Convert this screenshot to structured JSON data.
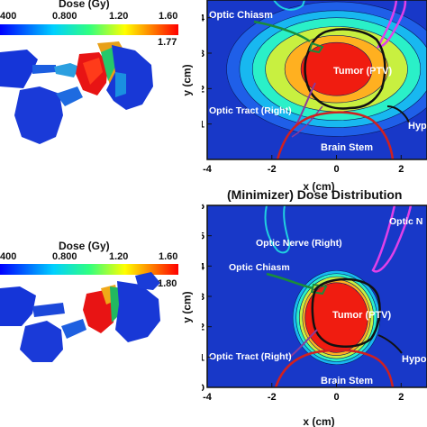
{
  "top_left": {
    "colorbar_title": "Dose (Gy)",
    "colorbar_ticks": [
      "400",
      "0.800",
      "1.20",
      "1.60"
    ],
    "colorbar_max": "1.77"
  },
  "bottom_left": {
    "colorbar_title": "Dose (Gy)",
    "colorbar_ticks": [
      "400",
      "0.800",
      "1.20",
      "1.60"
    ],
    "colorbar_max": "1.80"
  },
  "top_right": {
    "title": "",
    "xlabel": "x (cm)",
    "ylabel": "y (cm)",
    "labels": {
      "optic_chiasm": "Optic Chiasm",
      "tumor": "Tumor (PTV)",
      "optic_tract": "Optic Tract (Right)",
      "hypo": "Hypo",
      "brain_stem": "Brain Stem"
    }
  },
  "bottom_right": {
    "title": "(Minimizer) Dose Distribution",
    "xlabel": "x (cm)",
    "ylabel": "y (cm)",
    "labels": {
      "optic_nerve": "Optic Nerve (Right)",
      "optic_nerve_2": "Optic N",
      "optic_chiasm": "Optic Chiasm",
      "tumor": "Tumor (PTV)",
      "optic_tract": "Optic Tract (Right)",
      "hypo": "Hypo",
      "brain_stem": "Brain Stem"
    }
  },
  "chart_data": [
    {
      "type": "heatmap",
      "title": "",
      "xlabel": "x (cm)",
      "ylabel": "y (cm)",
      "xlim": [
        -4,
        2.8
      ],
      "ylim": [
        0,
        4.5
      ],
      "x_ticks": [
        -4,
        -2,
        0,
        2
      ],
      "y_ticks": [
        1,
        2,
        3,
        4
      ],
      "tumor_center": [
        0,
        2.55
      ],
      "isodose_radii": [
        [
          3.4,
          1.9
        ],
        [
          3.0,
          1.65
        ],
        [
          2.6,
          1.45
        ],
        [
          2.2,
          1.2
        ],
        [
          1.6,
          0.95
        ],
        [
          1.1,
          0.75
        ]
      ]
    },
    {
      "type": "heatmap",
      "title": "(Minimizer) Dose Distribution",
      "xlabel": "x (cm)",
      "ylabel": "y (cm)",
      "xlim": [
        -4,
        2.8
      ],
      "ylim": [
        0,
        6
      ],
      "x_ticks": [
        -4,
        -2,
        0,
        2
      ],
      "y_ticks": [
        0,
        1,
        2,
        3,
        4,
        5,
        6
      ],
      "tumor_center": [
        0,
        2.3
      ],
      "isodose_radii": [
        [
          1.35,
          1.55
        ],
        [
          1.25,
          1.45
        ],
        [
          1.15,
          1.35
        ],
        [
          1.05,
          1.25
        ],
        [
          0.97,
          1.15
        ]
      ]
    }
  ]
}
